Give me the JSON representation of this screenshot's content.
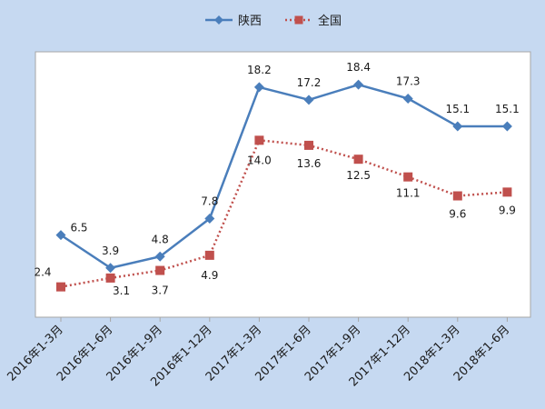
{
  "chart_data": {
    "type": "line",
    "categories": [
      "2016年1-3月",
      "2016年1-6月",
      "2016年1-9月",
      "2016年1-12月",
      "2017年1-3月",
      "2017年1-6月",
      "2017年1-9月",
      "2017年1-12月",
      "2018年1-3月",
      "2018年1-6月"
    ],
    "series": [
      {
        "name": "陕西",
        "values": [
          6.5,
          3.9,
          4.8,
          7.8,
          18.2,
          17.2,
          18.4,
          17.3,
          15.1,
          15.1
        ],
        "color": "#4a7ebb",
        "marker": "diamond",
        "line_style": "solid"
      },
      {
        "name": "全国",
        "values": [
          2.4,
          3.1,
          3.7,
          4.9,
          14.0,
          13.6,
          12.5,
          11.1,
          9.6,
          9.9
        ],
        "color": "#c0504d",
        "marker": "square",
        "line_style": "dotted"
      }
    ],
    "data_labels": {
      "陕西": [
        "6.5",
        "3.9",
        "4.8",
        "7.8",
        "18.2",
        "17.2",
        "18.4",
        "17.3",
        "15.1",
        "15.1"
      ],
      "全国": [
        "2.4",
        "3.1",
        "3.7",
        "4.9",
        "14.0",
        "13.6",
        "12.5",
        "11.1",
        "9.6",
        "9.9"
      ]
    },
    "ylim": [
      0,
      21
    ],
    "y_axis_visible": false,
    "grid": false,
    "legend_position": "top-center",
    "background_color": "#c6d9f1",
    "plot_background_color": "#ffffff"
  }
}
